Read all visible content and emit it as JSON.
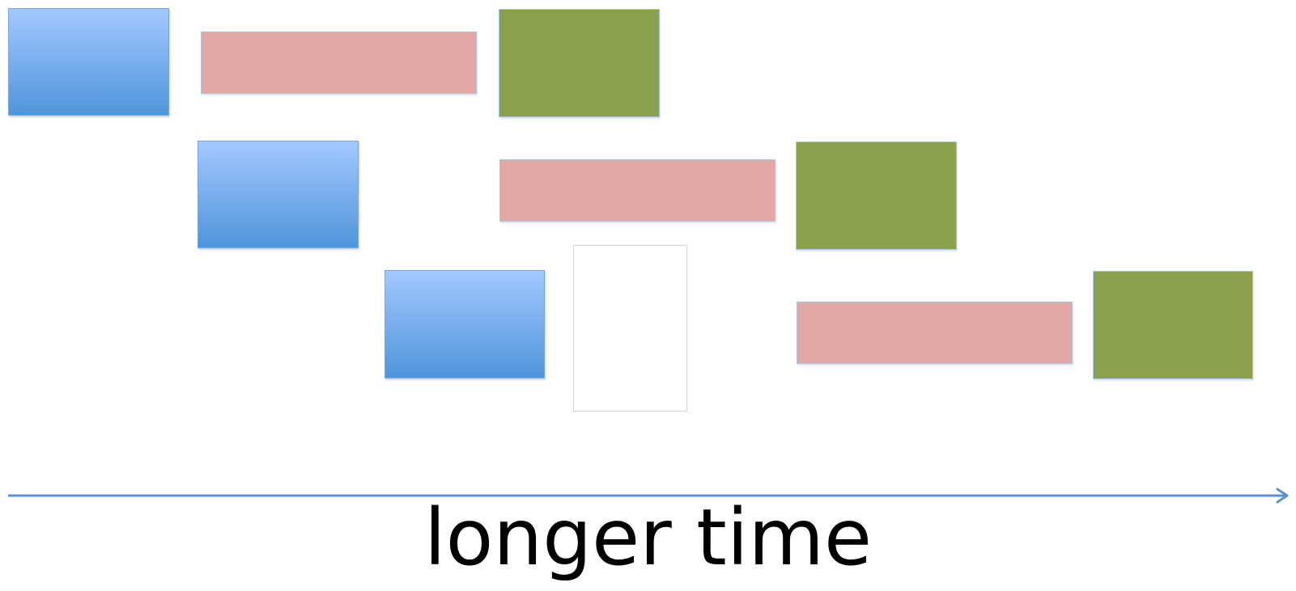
{
  "diagram": {
    "colors": {
      "fetch_top": "#a3c8ff",
      "fetch_bottom": "#4f95db",
      "decode": "#e3a8a5",
      "execute": "#8aa04b",
      "axis": "#5b8fcf",
      "gap_border": "#d4d4d4"
    },
    "lanes": [
      {
        "stages": [
          "blue",
          "pink",
          "green"
        ]
      },
      {
        "stages": [
          "blue",
          "pink",
          "green"
        ]
      },
      {
        "stages": [
          "blue",
          "gap",
          "pink",
          "green"
        ]
      }
    ],
    "axis": {
      "label": "longer time",
      "arrow_icon": "arrow-right-icon"
    }
  }
}
